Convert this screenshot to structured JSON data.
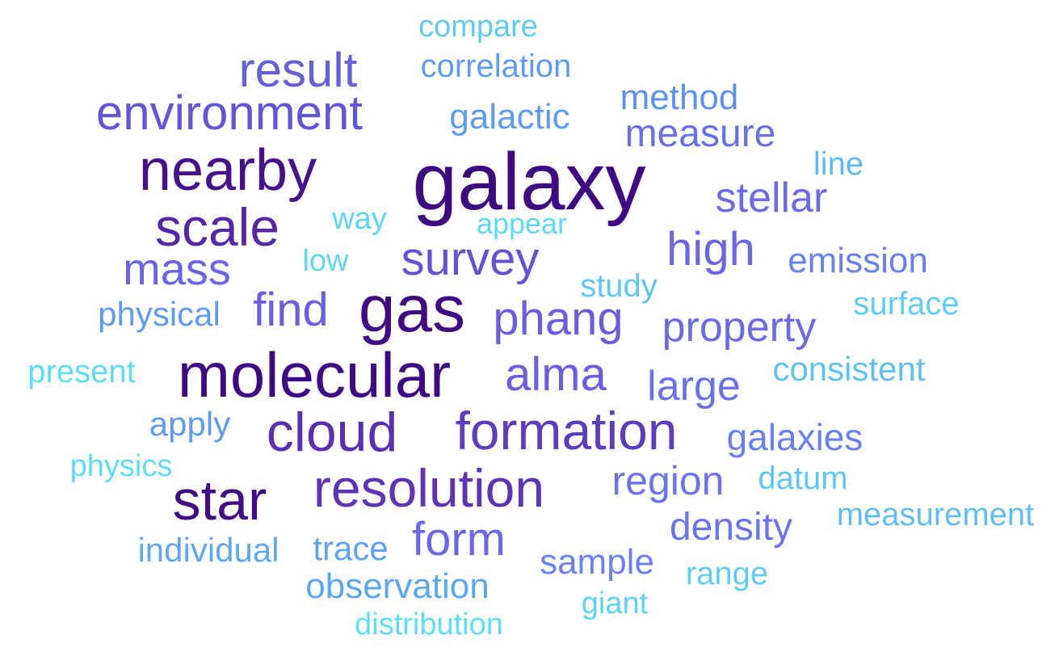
{
  "words": [
    {
      "text": "galaxy",
      "color": "#3d0a82"
    },
    {
      "text": "molecular",
      "color": "#3c0a82"
    },
    {
      "text": "gas",
      "color": "#3e0b83"
    },
    {
      "text": "star",
      "color": "#3f0c85"
    },
    {
      "text": "nearby",
      "color": "#44128b"
    },
    {
      "text": "cloud",
      "color": "#5a2fb0"
    },
    {
      "text": "scale",
      "color": "#5528a7"
    },
    {
      "text": "resolution",
      "color": "#5c34b5"
    },
    {
      "text": "formation",
      "color": "#5e3cbe"
    },
    {
      "text": "environment",
      "color": "#6256d8"
    },
    {
      "text": "result",
      "color": "#6460d8"
    },
    {
      "text": "survey",
      "color": "#6353d2"
    },
    {
      "text": "phang",
      "color": "#6a5ee0"
    },
    {
      "text": "find",
      "color": "#6b5ee0"
    },
    {
      "text": "alma",
      "color": "#6b5ee0"
    },
    {
      "text": "mass",
      "color": "#6b64e4"
    },
    {
      "text": "high",
      "color": "#6b66e6"
    },
    {
      "text": "form",
      "color": "#6b66e6"
    },
    {
      "text": "stellar",
      "color": "#6d6ae8"
    },
    {
      "text": "property",
      "color": "#6d6ae8"
    },
    {
      "text": "large",
      "color": "#6d70ec"
    },
    {
      "text": "measure",
      "color": "#6870e8"
    },
    {
      "text": "region",
      "color": "#6b74ea"
    },
    {
      "text": "density",
      "color": "#6b74ea"
    },
    {
      "text": "galaxies",
      "color": "#6a80ee"
    },
    {
      "text": "emission",
      "color": "#6a80ee"
    },
    {
      "text": "sample",
      "color": "#6a82ef"
    },
    {
      "text": "method",
      "color": "#5d93ef"
    },
    {
      "text": "correlation",
      "color": "#5d9cf0"
    },
    {
      "text": "galactic",
      "color": "#5d9cf0"
    },
    {
      "text": "physical",
      "color": "#5d9cf0"
    },
    {
      "text": "apply",
      "color": "#5d9cf0"
    },
    {
      "text": "trace",
      "color": "#5fa2f1"
    },
    {
      "text": "individual",
      "color": "#5fa8f2"
    },
    {
      "text": "observation",
      "color": "#5aa8f2"
    },
    {
      "text": "compare",
      "color": "#5ecbf5"
    },
    {
      "text": "line",
      "color": "#5fb8f3"
    },
    {
      "text": "consistent",
      "color": "#5fc0f4"
    },
    {
      "text": "measurement",
      "color": "#5fbef4"
    },
    {
      "text": "datum",
      "color": "#5fc6f5"
    },
    {
      "text": "study",
      "color": "#5fc6f5"
    },
    {
      "text": "surface",
      "color": "#5fccf5"
    },
    {
      "text": "range",
      "color": "#5fccf5"
    },
    {
      "text": "giant",
      "color": "#5fd2f6"
    },
    {
      "text": "way",
      "color": "#5fd4f6"
    },
    {
      "text": "appear",
      "color": "#5fd8f7"
    },
    {
      "text": "low",
      "color": "#5fd8f7"
    },
    {
      "text": "present",
      "color": "#5fdcf7"
    },
    {
      "text": "physics",
      "color": "#5fdcf7"
    },
    {
      "text": "distribution",
      "color": "#5fdcf7"
    }
  ]
}
